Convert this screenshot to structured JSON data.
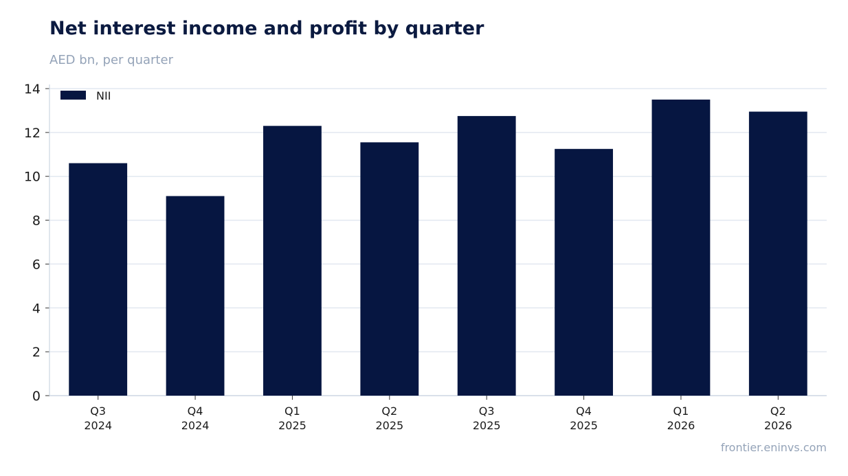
{
  "header": {
    "title": "Net interest income and profit by quarter",
    "subtitle": "AED bn, per quarter"
  },
  "footer": {
    "source": "frontier.eninvs.com"
  },
  "colors": {
    "bar": "#061641",
    "grid": "#e2e8f0",
    "axis": "#cbd5e1"
  },
  "chart_data": {
    "type": "bar",
    "title": "Net interest income and profit by quarter",
    "subtitle": "AED bn, per quarter",
    "xlabel": "",
    "ylabel": "",
    "categories": [
      [
        "Q3",
        "2024"
      ],
      [
        "Q4",
        "2024"
      ],
      [
        "Q1",
        "2025"
      ],
      [
        "Q2",
        "2025"
      ],
      [
        "Q3",
        "2025"
      ],
      [
        "Q4",
        "2025"
      ],
      [
        "Q1",
        "2026"
      ],
      [
        "Q2",
        "2026"
      ]
    ],
    "series": [
      {
        "name": "NII",
        "values": [
          10.6,
          9.1,
          12.3,
          11.55,
          12.75,
          11.25,
          13.5,
          12.95
        ]
      }
    ],
    "ylim": [
      0,
      14
    ],
    "yticks": [
      0,
      2,
      4,
      6,
      8,
      10,
      12,
      14
    ],
    "grid": true,
    "legend": "top-left"
  }
}
